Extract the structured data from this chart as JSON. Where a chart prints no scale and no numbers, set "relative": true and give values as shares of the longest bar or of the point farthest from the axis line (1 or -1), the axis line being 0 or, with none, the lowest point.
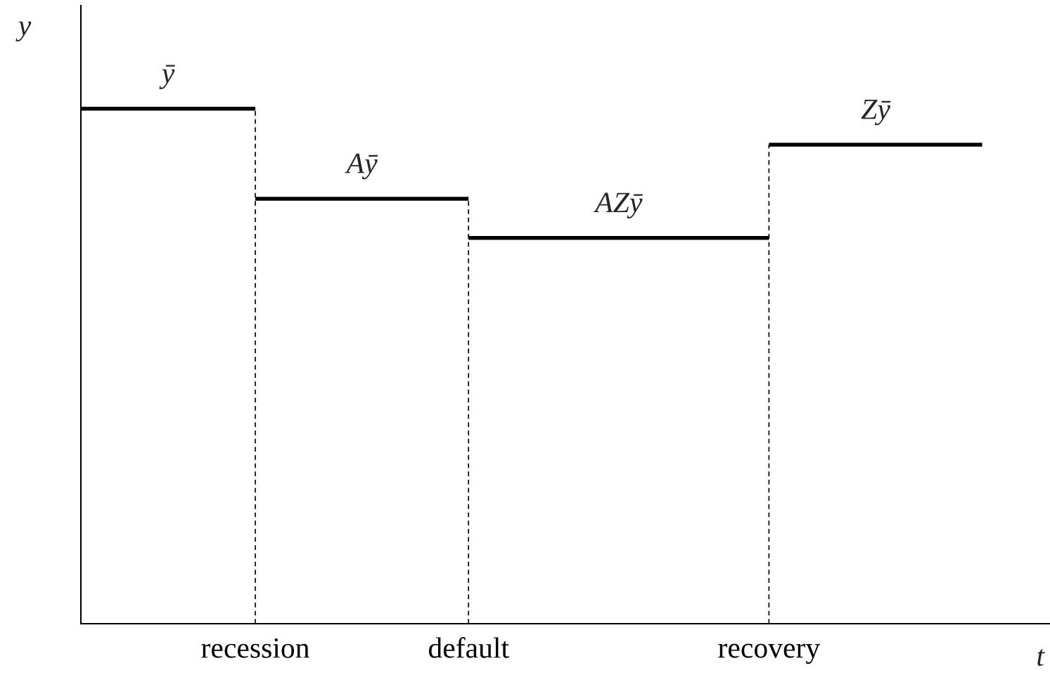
{
  "chart_data": {
    "type": "line",
    "relative": true,
    "xlabel": "t",
    "ylabel": "y",
    "tick_labels": "x",
    "line_style": "solid",
    "categories": [
      null,
      null,
      null,
      null,
      null,
      null,
      null,
      null,
      null,
      null,
      null,
      null,
      null,
      null,
      null,
      null,
      null,
      null,
      "recession",
      null,
      null,
      null,
      null,
      null,
      null,
      null,
      null,
      null,
      null,
      null,
      null,
      null,
      null,
      null,
      null,
      null,
      null,
      null,
      null,
      null,
      "default",
      null,
      null,
      null,
      null,
      null,
      null,
      null,
      null,
      null,
      null,
      null,
      null,
      null,
      null,
      null,
      null,
      null,
      null,
      null,
      null,
      null,
      null,
      null,
      null,
      null,
      null,
      null,
      null,
      null,
      null,
      "recovery",
      null,
      null,
      null,
      null,
      null,
      null,
      null,
      null,
      null,
      null,
      null,
      null,
      null,
      null,
      null,
      null,
      null,
      null,
      null,
      null,
      null,
      null,
      null,
      null,
      null,
      null,
      null,
      null,
      null
    ],
    "series": [
      {
        "color": "#000000",
        "values": [
          1,
          1,
          1,
          1,
          1,
          1,
          1,
          1,
          1,
          1,
          1,
          1,
          1,
          1,
          1,
          1,
          1,
          1,
          1,
          null,
          null,
          null,
          null,
          null,
          null,
          null,
          null,
          null,
          null,
          null,
          null,
          null,
          null,
          null,
          null,
          null,
          null,
          null,
          null,
          null,
          0.749,
          0.749,
          0.749,
          0.749,
          0.749,
          0.749,
          0.749,
          0.749,
          0.749,
          0.749,
          0.749,
          0.749,
          0.749,
          0.749,
          0.749,
          0.749,
          0.749,
          0.749,
          0.749,
          0.749,
          0.749,
          0.749,
          0.749,
          0.749,
          0.749,
          0.749,
          0.749,
          0.749,
          0.749,
          0.749,
          0.749,
          0.749,
          null,
          null,
          null,
          null,
          null,
          null,
          null,
          null,
          null,
          null,
          null,
          null,
          null,
          null,
          null,
          null,
          null,
          null,
          null,
          null,
          null,
          null,
          null,
          null,
          null,
          null,
          null,
          null,
          null
        ]
      },
      {
        "color": "#000000",
        "values": [
          null,
          null,
          null,
          null,
          null,
          null,
          null,
          null,
          null,
          null,
          null,
          null,
          null,
          null,
          null,
          null,
          null,
          null,
          0.825,
          0.825,
          0.825,
          0.825,
          0.825,
          0.825,
          0.825,
          0.825,
          0.825,
          0.825,
          0.825,
          0.825,
          0.825,
          0.825,
          0.825,
          0.825,
          0.825,
          0.825,
          0.825,
          0.825,
          0.825,
          0.825,
          0.825,
          null,
          null,
          null,
          null,
          null,
          null,
          null,
          null,
          null,
          null,
          null,
          null,
          null,
          null,
          null,
          null,
          null,
          null,
          null,
          null,
          null,
          null,
          null,
          null,
          null,
          null,
          null,
          null,
          null,
          null,
          0.93,
          0.93,
          0.93,
          0.93,
          0.93,
          0.93,
          0.93,
          0.93,
          0.93,
          0.93,
          0.93,
          0.93,
          0.93,
          0.93,
          0.93,
          0.93,
          0.93,
          0.93,
          0.93,
          0.93,
          0.93,
          0.93,
          0.93,
          null,
          null,
          null,
          null,
          null,
          null,
          null
        ]
      }
    ],
    "annotations": [
      {
        "text": "ȳ",
        "y": 1
      },
      {
        "text": "Aȳ",
        "y": 0.825
      },
      {
        "text": "AZȳ",
        "y": 0.749
      },
      {
        "text": "Zȳ",
        "y": 0.93
      }
    ],
    "ref_lines": [
      {
        "axis": "x",
        "value": "recession",
        "line_style": "dashed",
        "color": "#000000"
      },
      {
        "axis": "x",
        "value": "default",
        "line_style": "dashed",
        "color": "#000000"
      },
      {
        "axis": "x",
        "value": "recovery",
        "line_style": "dashed",
        "color": "#000000"
      }
    ]
  }
}
